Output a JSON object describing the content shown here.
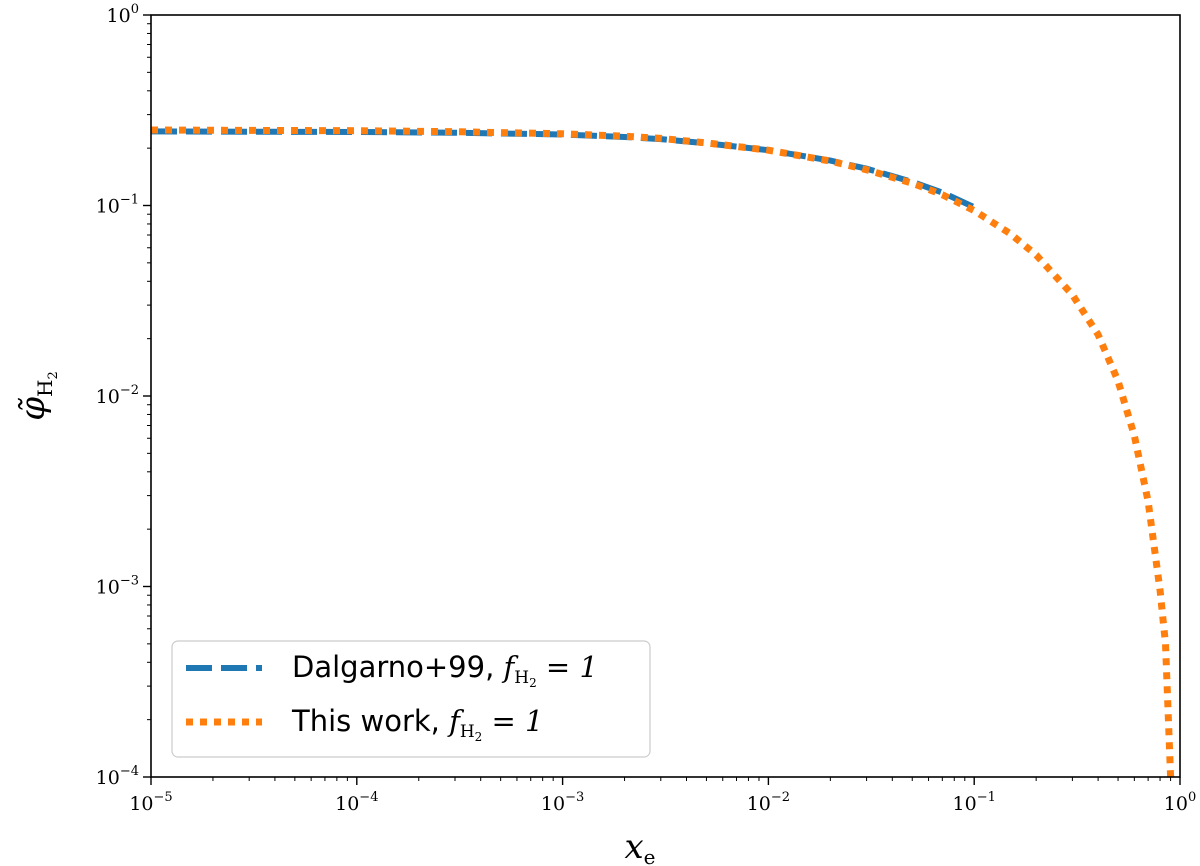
{
  "chart_data": {
    "type": "line",
    "xscale": "log",
    "yscale": "log",
    "xlim": [
      1e-05,
      1
    ],
    "ylim": [
      0.0001,
      1
    ],
    "xlabel": "x",
    "xlabel_sub": "e",
    "ylabel": "φ̃",
    "ylabel_sub": "H",
    "ylabel_subsub": "2",
    "grid": false,
    "legend_position": "lower-left",
    "x_ticks": [
      {
        "value": 1e-05,
        "base": "10",
        "exp": "−5"
      },
      {
        "value": 0.0001,
        "base": "10",
        "exp": "−4"
      },
      {
        "value": 0.001,
        "base": "10",
        "exp": "−3"
      },
      {
        "value": 0.01,
        "base": "10",
        "exp": "−2"
      },
      {
        "value": 0.1,
        "base": "10",
        "exp": "−1"
      },
      {
        "value": 1,
        "base": "10",
        "exp": "0"
      }
    ],
    "y_ticks": [
      {
        "value": 0.0001,
        "base": "10",
        "exp": "−4"
      },
      {
        "value": 0.001,
        "base": "10",
        "exp": "−3"
      },
      {
        "value": 0.01,
        "base": "10",
        "exp": "−2"
      },
      {
        "value": 0.1,
        "base": "10",
        "exp": "−1"
      },
      {
        "value": 1,
        "base": "10",
        "exp": "0"
      }
    ],
    "series": [
      {
        "name": "Dalgarno+99, ",
        "name_math": "f",
        "name_sub": "H",
        "name_subsub": "2",
        "name_eq": " = 1",
        "color": "#1f77b4",
        "style": "dashed",
        "x": [
          1e-05,
          3e-05,
          0.0001,
          0.0003,
          0.001,
          0.002,
          0.003,
          0.005,
          0.01,
          0.02,
          0.03,
          0.05,
          0.07,
          0.1
        ],
        "y": [
          0.245,
          0.244,
          0.243,
          0.241,
          0.236,
          0.229,
          0.223,
          0.212,
          0.195,
          0.172,
          0.156,
          0.133,
          0.117,
          0.098
        ]
      },
      {
        "name": "This work, ",
        "name_math": "f",
        "name_sub": "H",
        "name_subsub": "2",
        "name_eq": " = 1",
        "color": "#ff7f0e",
        "style": "dotted",
        "x": [
          1e-05,
          3e-05,
          0.0001,
          0.0003,
          0.001,
          0.002,
          0.003,
          0.005,
          0.01,
          0.02,
          0.03,
          0.05,
          0.07,
          0.1,
          0.15,
          0.2,
          0.3,
          0.4,
          0.5,
          0.6,
          0.7,
          0.8,
          0.85,
          0.9
        ],
        "y": [
          0.249,
          0.248,
          0.247,
          0.244,
          0.238,
          0.231,
          0.225,
          0.213,
          0.195,
          0.171,
          0.154,
          0.131,
          0.114,
          0.094,
          0.071,
          0.055,
          0.034,
          0.021,
          0.012,
          0.0062,
          0.0028,
          0.00095,
          0.0005,
          0.0001
        ]
      }
    ]
  }
}
